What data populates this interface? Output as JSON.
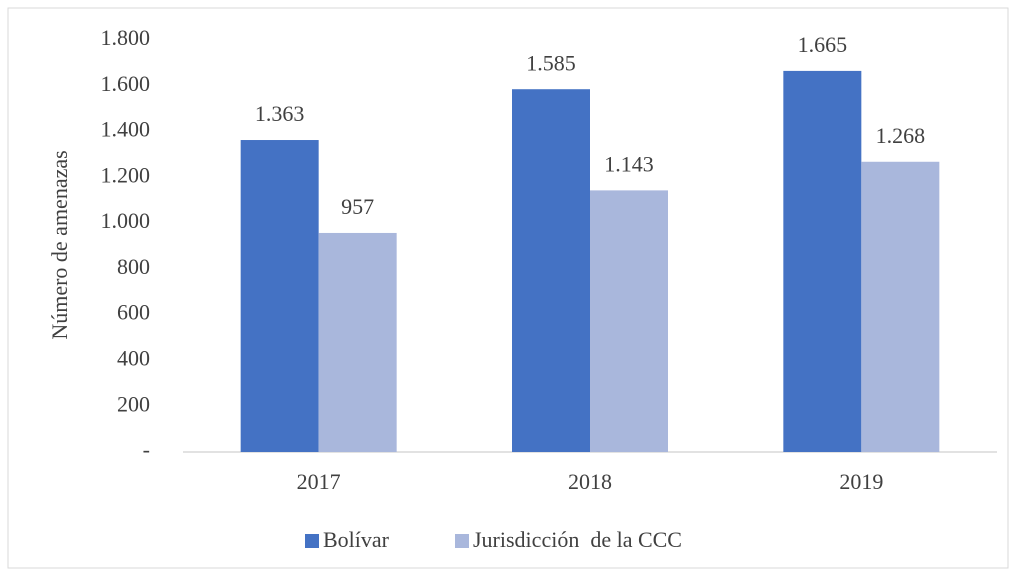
{
  "chart_data": {
    "type": "bar",
    "y_label": "Número de amenazas",
    "categories": [
      "2017",
      "2018",
      "2019"
    ],
    "series": [
      {
        "name": "Bolívar",
        "color": "#4472c4",
        "values": [
          1363,
          1585,
          1665
        ],
        "value_labels": [
          "1.363",
          "1.585",
          "1.665"
        ]
      },
      {
        "name": "Jurisdicción  de la CCC",
        "color": "#a9b7dc",
        "values": [
          957,
          1143,
          1268
        ],
        "value_labels": [
          "957",
          "1.143",
          "1.268"
        ]
      }
    ],
    "ylim": [
      0,
      1800
    ],
    "yticks": [
      {
        "value": 0,
        "label": "-"
      },
      200,
      400,
      600,
      800,
      {
        "value": 1000,
        "label": "1.000"
      },
      {
        "value": 1200,
        "label": "1.200"
      },
      {
        "value": 1400,
        "label": "1.400"
      },
      {
        "value": 1600,
        "label": "1.600"
      },
      {
        "value": 1800,
        "label": "1.800"
      }
    ],
    "grid": false,
    "legend": "bottom"
  }
}
